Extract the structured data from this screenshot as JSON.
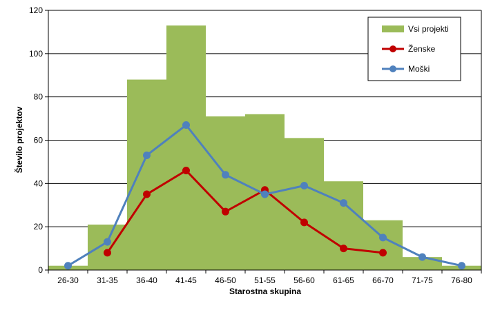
{
  "chart_data": {
    "type": "bar",
    "categories": [
      "26-30",
      "31-35",
      "36-40",
      "41-45",
      "46-50",
      "51-55",
      "56-60",
      "61-65",
      "66-70",
      "71-75",
      "76-80"
    ],
    "xlabel": "Starostna skupina",
    "ylabel": "Število projektov",
    "ylim": [
      0,
      120
    ],
    "yticks": [
      0,
      20,
      40,
      60,
      80,
      100,
      120
    ],
    "grid": true,
    "legend_position": "top-right",
    "series": [
      {
        "name": "Vsi projekti",
        "type": "bar",
        "color": "#9bbb59",
        "values": [
          2,
          21,
          88,
          113,
          71,
          72,
          61,
          41,
          23,
          6,
          2
        ]
      },
      {
        "name": "Ženske",
        "type": "line",
        "color": "#c00000",
        "values": [
          null,
          8,
          35,
          46,
          27,
          37,
          22,
          10,
          8,
          null,
          null
        ]
      },
      {
        "name": "Moški",
        "type": "line",
        "color": "#4f81bd",
        "values": [
          2,
          13,
          53,
          67,
          44,
          35,
          39,
          31,
          15,
          6,
          2
        ]
      }
    ]
  }
}
